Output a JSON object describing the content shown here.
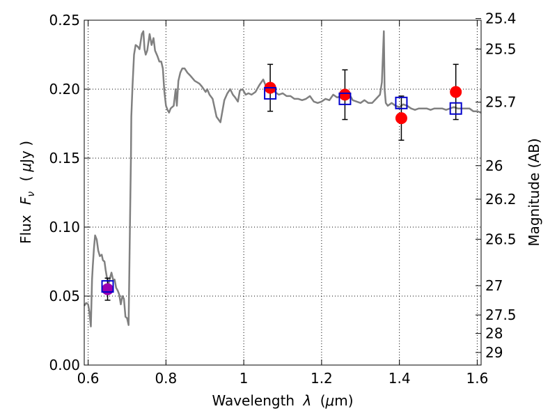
{
  "chart_data": {
    "type": "scatter",
    "xlabel_text": "Wavelength",
    "xlabel_var": "λ",
    "xlabel_unit_pre": "(",
    "xlabel_unit_mu": "μ",
    "xlabel_unit_post": "m)",
    "ylabel_text": "Flux",
    "ylabel_var": "F",
    "ylabel_sub": "ν",
    "ylabel_unit_pre": "(",
    "ylabel_unit_mu": "μ",
    "ylabel_unit_post": "Jy )",
    "y2label": "Magnitude (AB)",
    "xlim": [
      0.59,
      1.61
    ],
    "ylim": [
      0.0,
      0.25
    ],
    "xticks": [
      0.6,
      0.8,
      1.0,
      1.2,
      1.4,
      1.6
    ],
    "xtick_labels": [
      "0.6",
      "0.8",
      "1",
      "1.2",
      "1.4",
      "1.6"
    ],
    "yticks": [
      0.0,
      0.05,
      0.1,
      0.15,
      0.2,
      0.25
    ],
    "ytick_labels": [
      "0.00",
      "0.05",
      "0.10",
      "0.15",
      "0.20",
      "0.25"
    ],
    "y2ticks": [
      {
        "label": "25.4",
        "mag": 25.4
      },
      {
        "label": "25.5",
        "mag": 25.5
      },
      {
        "label": "25.7",
        "mag": 25.7
      },
      {
        "label": "26",
        "mag": 26.0
      },
      {
        "label": "26.2",
        "mag": 26.2
      },
      {
        "label": "26.5",
        "mag": 26.5
      },
      {
        "label": "27",
        "mag": 27.0
      },
      {
        "label": "27.5",
        "mag": 27.5
      },
      {
        "label": "28",
        "mag": 28.0
      },
      {
        "label": "29",
        "mag": 29.0
      }
    ],
    "grid": true,
    "colors": {
      "model": "#808080",
      "observed": "#ff0000",
      "observed_edge": "#ff0000",
      "model_photometry": "#0000cc",
      "overlap_fill": "#9b00b0",
      "errorbar": "#000000",
      "grid": "#000000"
    },
    "model_spectrum": {
      "x": [
        0.59,
        0.595,
        0.6,
        0.603,
        0.607,
        0.61,
        0.612,
        0.615,
        0.618,
        0.622,
        0.626,
        0.63,
        0.635,
        0.638,
        0.642,
        0.645,
        0.648,
        0.652,
        0.656,
        0.66,
        0.664,
        0.668,
        0.672,
        0.676,
        0.68,
        0.684,
        0.688,
        0.692,
        0.696,
        0.7,
        0.704,
        0.708,
        0.71,
        0.711,
        0.714,
        0.718,
        0.722,
        0.727,
        0.732,
        0.738,
        0.742,
        0.745,
        0.748,
        0.752,
        0.758,
        0.763,
        0.768,
        0.772,
        0.778,
        0.783,
        0.788,
        0.792,
        0.796,
        0.8,
        0.804,
        0.808,
        0.812,
        0.816,
        0.82,
        0.825,
        0.828,
        0.832,
        0.837,
        0.842,
        0.848,
        0.855,
        0.862,
        0.868,
        0.874,
        0.88,
        0.886,
        0.892,
        0.897,
        0.902,
        0.906,
        0.912,
        0.92,
        0.93,
        0.94,
        0.95,
        0.958,
        0.965,
        0.972,
        0.978,
        0.985,
        0.99,
        0.997,
        1.005,
        1.012,
        1.02,
        1.03,
        1.04,
        1.05,
        1.06,
        1.07,
        1.08,
        1.09,
        1.1,
        1.11,
        1.12,
        1.13,
        1.14,
        1.15,
        1.16,
        1.17,
        1.18,
        1.19,
        1.2,
        1.21,
        1.22,
        1.23,
        1.24,
        1.25,
        1.26,
        1.27,
        1.28,
        1.29,
        1.3,
        1.31,
        1.32,
        1.33,
        1.34,
        1.35,
        1.355,
        1.36,
        1.362,
        1.365,
        1.37,
        1.38,
        1.39,
        1.4,
        1.41,
        1.42,
        1.43,
        1.44,
        1.45,
        1.46,
        1.47,
        1.48,
        1.49,
        1.5,
        1.51,
        1.52,
        1.53,
        1.54,
        1.55,
        1.56,
        1.57,
        1.58,
        1.59,
        1.6,
        1.61
      ],
      "y": [
        0.043,
        0.045,
        0.044,
        0.039,
        0.028,
        0.062,
        0.072,
        0.085,
        0.094,
        0.091,
        0.083,
        0.079,
        0.08,
        0.076,
        0.075,
        0.069,
        0.064,
        0.058,
        0.063,
        0.067,
        0.062,
        0.062,
        0.056,
        0.054,
        0.051,
        0.044,
        0.05,
        0.048,
        0.035,
        0.034,
        0.029,
        0.11,
        0.152,
        0.18,
        0.202,
        0.225,
        0.232,
        0.231,
        0.229,
        0.24,
        0.242,
        0.229,
        0.225,
        0.228,
        0.24,
        0.232,
        0.237,
        0.228,
        0.224,
        0.22,
        0.22,
        0.215,
        0.198,
        0.188,
        0.185,
        0.183,
        0.186,
        0.187,
        0.188,
        0.2,
        0.188,
        0.206,
        0.212,
        0.215,
        0.215,
        0.212,
        0.21,
        0.208,
        0.206,
        0.205,
        0.204,
        0.202,
        0.2,
        0.198,
        0.2,
        0.196,
        0.193,
        0.18,
        0.176,
        0.192,
        0.197,
        0.2,
        0.196,
        0.194,
        0.191,
        0.199,
        0.2,
        0.196,
        0.197,
        0.196,
        0.198,
        0.203,
        0.207,
        0.2,
        0.203,
        0.198,
        0.196,
        0.197,
        0.195,
        0.195,
        0.193,
        0.193,
        0.192,
        0.193,
        0.195,
        0.191,
        0.19,
        0.191,
        0.193,
        0.192,
        0.196,
        0.194,
        0.195,
        0.197,
        0.197,
        0.192,
        0.191,
        0.19,
        0.192,
        0.19,
        0.19,
        0.193,
        0.196,
        0.205,
        0.242,
        0.2,
        0.19,
        0.188,
        0.19,
        0.188,
        0.187,
        0.189,
        0.188,
        0.186,
        0.185,
        0.186,
        0.186,
        0.186,
        0.185,
        0.186,
        0.186,
        0.186,
        0.185,
        0.186,
        0.187,
        0.186,
        0.186,
        0.186,
        0.186,
        0.184,
        0.184,
        0.183
      ]
    },
    "observed": {
      "x": [
        0.65,
        1.068,
        1.26,
        1.405,
        1.545
      ],
      "y": [
        0.055,
        0.201,
        0.196,
        0.179,
        0.198
      ],
      "yerr": [
        0.008,
        0.017,
        0.018,
        0.016,
        0.02
      ]
    },
    "model_photometry": {
      "x": [
        0.65,
        1.068,
        1.26,
        1.405,
        1.545
      ],
      "y": [
        0.057,
        0.197,
        0.193,
        0.19,
        0.186
      ]
    }
  }
}
